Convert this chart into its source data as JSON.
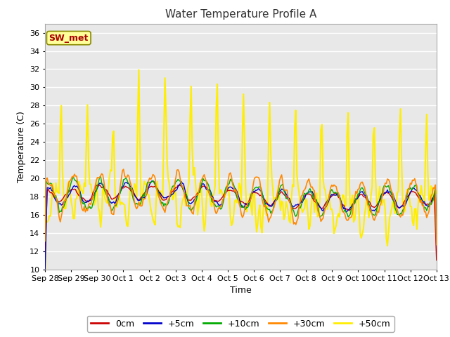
{
  "title": "Water Temperature Profile A",
  "xlabel": "Time",
  "ylabel": "Temperature (C)",
  "ylim": [
    10,
    37
  ],
  "yticks": [
    10,
    12,
    14,
    16,
    18,
    20,
    22,
    24,
    26,
    28,
    30,
    32,
    34,
    36
  ],
  "xlim_days": [
    0,
    15
  ],
  "x_tick_labels": [
    "Sep 28",
    "Sep 29",
    "Sep 30",
    "Oct 1",
    "Oct 2",
    "Oct 3",
    "Oct 4",
    "Oct 5",
    "Oct 6",
    "Oct 7",
    "Oct 8",
    "Oct 9",
    "Oct 10",
    "Oct 11",
    "Oct 12",
    "Oct 13"
  ],
  "colors": {
    "0cm": "#cc0000",
    "+5cm": "#0000cc",
    "+10cm": "#00aa00",
    "+30cm": "#ff8800",
    "+50cm": "#ffee00"
  },
  "annotation_text": "SW_met",
  "annotation_color": "#aa0000",
  "annotation_bg": "#ffff99",
  "annotation_border": "#888800",
  "plot_bg": "#e8e8e8",
  "fig_bg": "#ffffff",
  "grid_color": "#ffffff",
  "title_fontsize": 11,
  "label_fontsize": 9,
  "tick_fontsize": 8,
  "legend_fontsize": 9
}
